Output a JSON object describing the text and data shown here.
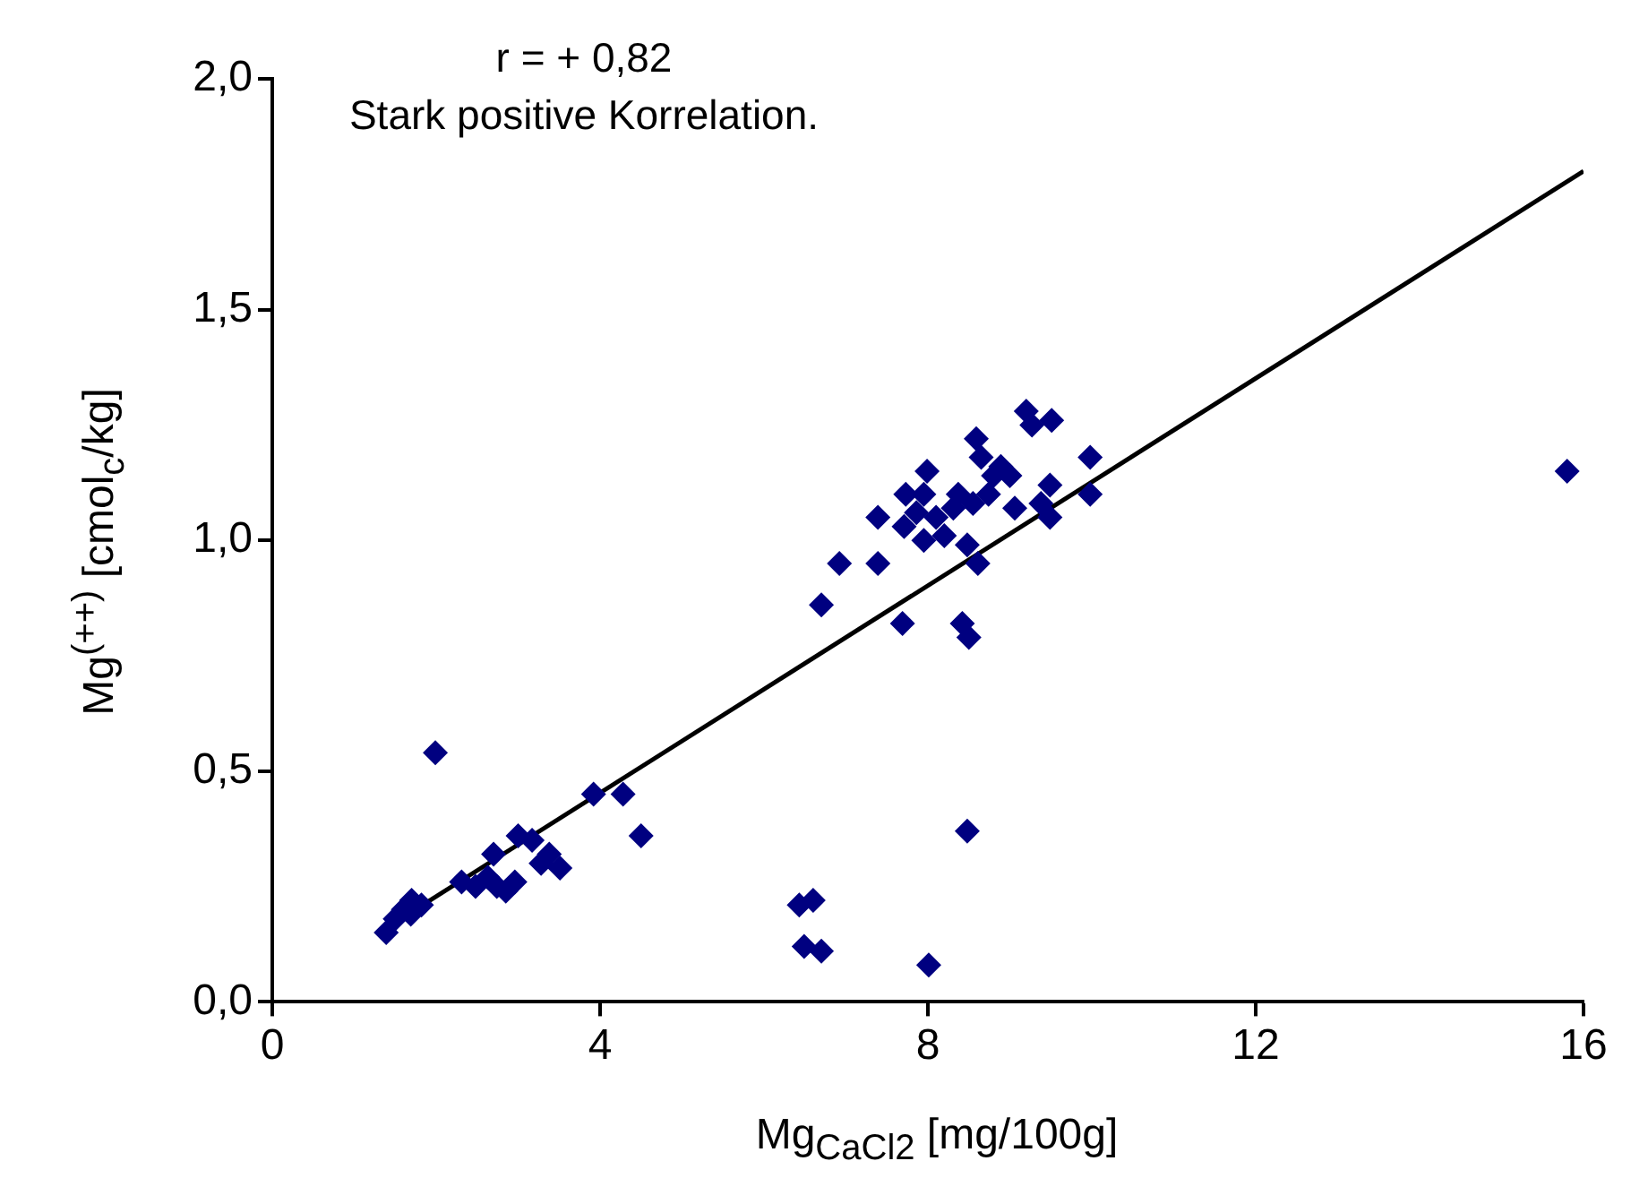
{
  "chart_data": {
    "type": "scatter",
    "xlabel": "Mg$_{CaCl2}$ [mg/100g]",
    "ylabel": "Mg$^{(++)}$ [cmol$_{c}$/kg]",
    "annotations": [
      "r = + 0,82",
      "Stark positive Korrelation."
    ],
    "xlim": [
      0,
      16
    ],
    "xticks": [
      0,
      4,
      8,
      12,
      16
    ],
    "ylim": [
      0,
      2
    ],
    "yticks": [
      {
        "value": 0,
        "label": "0,0"
      },
      {
        "value": 0.5,
        "label": "0,5"
      },
      {
        "value": 1,
        "label": "1,0"
      },
      {
        "value": 1.5,
        "label": "1,5"
      },
      {
        "value": 2,
        "label": "2,0"
      }
    ],
    "grid": false,
    "legend": false,
    "marker": "diamond",
    "series": [
      {
        "color": "#000080",
        "x": [
          1.39,
          1.5,
          1.6,
          1.7,
          1.82,
          1.69,
          1.99,
          2.31,
          2.48,
          2.63,
          2.74,
          2.7,
          2.85,
          2.96,
          3.0,
          3.17,
          3.28,
          3.38,
          3.51,
          3.92,
          4.28,
          4.5,
          6.43,
          6.6,
          6.49,
          6.7,
          8.01,
          8.48,
          6.7,
          6.92,
          7.39,
          7.39,
          7.69,
          7.73,
          7.71,
          7.86,
          7.95,
          7.99,
          7.95,
          8.1,
          8.2,
          8.31,
          8.37,
          8.42,
          8.5,
          8.48,
          8.55,
          8.61,
          8.59,
          8.65,
          8.74,
          8.8,
          8.89,
          9.0,
          9.06,
          9.2,
          9.27,
          9.38,
          9.49,
          9.49,
          9.51,
          9.98,
          9.98,
          15.8
        ],
        "values": [
          0.15,
          0.18,
          0.2,
          0.22,
          0.21,
          0.19,
          0.54,
          0.26,
          0.25,
          0.27,
          0.25,
          0.32,
          0.24,
          0.26,
          0.36,
          0.35,
          0.3,
          0.32,
          0.29,
          0.45,
          0.45,
          0.36,
          0.21,
          0.22,
          0.12,
          0.11,
          0.08,
          0.37,
          0.86,
          0.95,
          0.95,
          1.05,
          0.82,
          1.1,
          1.03,
          1.06,
          1.0,
          1.15,
          1.1,
          1.05,
          1.01,
          1.07,
          1.1,
          0.82,
          0.79,
          0.99,
          1.08,
          0.95,
          1.22,
          1.18,
          1.1,
          1.14,
          1.16,
          1.14,
          1.07,
          1.28,
          1.25,
          1.08,
          1.05,
          1.12,
          1.26,
          1.18,
          1.1,
          1.15
        ]
      },
      {
        "type": "line",
        "color": "#000000",
        "x": [
          1.39,
          16
        ],
        "values": [
          0.16,
          1.8
        ],
        "marker": "none",
        "line_style": "solid"
      }
    ]
  }
}
